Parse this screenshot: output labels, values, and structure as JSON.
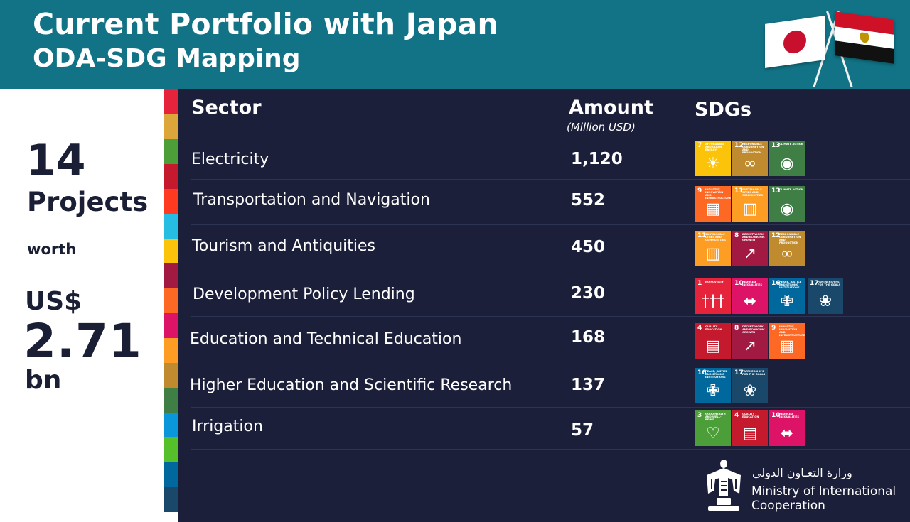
{
  "header": {
    "title": "Current Portfolio with Japan",
    "subtitle": "ODA-SDG Mapping"
  },
  "summary": {
    "projects_count": "14",
    "projects_label": "Projects",
    "worth_label": "worth",
    "currency": "US$",
    "total": "2.71",
    "unit": "bn"
  },
  "table": {
    "headers": {
      "sector": "Sector",
      "amount": "Amount",
      "amount_unit": "(Million USD)",
      "sdgs": "SDGs"
    },
    "rows": [
      {
        "sector": "Electricity",
        "amount": "1,120",
        "sdgs": [
          7,
          12,
          13
        ]
      },
      {
        "sector": "Transportation and Navigation",
        "amount": "552",
        "sdgs": [
          9,
          11,
          13
        ]
      },
      {
        "sector": "Tourism and Antiquities",
        "amount": "450",
        "sdgs": [
          11,
          8,
          12
        ]
      },
      {
        "sector": "Development Policy Lending",
        "amount": "230",
        "sdgs": [
          1,
          10,
          16,
          17
        ]
      },
      {
        "sector": "Education and Technical Education",
        "amount": "168",
        "sdgs": [
          4,
          8,
          9
        ]
      },
      {
        "sector": "Higher Education and Scientific Research",
        "amount": "137",
        "sdgs": [
          16,
          17
        ]
      },
      {
        "sector": "Irrigation",
        "amount": "57",
        "sdgs": [
          3,
          4,
          10
        ]
      }
    ]
  },
  "sdg_goals": {
    "1": {
      "title": "No Poverty",
      "color": "#e5243b",
      "icon": "family-icon"
    },
    "3": {
      "title": "Good Health and Well-Being",
      "color": "#4c9f38",
      "icon": "heartbeat-icon"
    },
    "4": {
      "title": "Quality Education",
      "color": "#c5192d",
      "icon": "book-icon"
    },
    "7": {
      "title": "Affordable and Clean Energy",
      "color": "#fcc30b",
      "icon": "sun-icon"
    },
    "8": {
      "title": "Decent Work and Economic Growth",
      "color": "#a21942",
      "icon": "growth-chart-icon"
    },
    "9": {
      "title": "Industry, Innovation and Infrastructure",
      "color": "#fd6925",
      "icon": "cubes-icon"
    },
    "10": {
      "title": "Reduced Inequalities",
      "color": "#dd1367",
      "icon": "equality-icon"
    },
    "11": {
      "title": "Sustainable Cities and Communities",
      "color": "#fd9d24",
      "icon": "city-icon"
    },
    "12": {
      "title": "Responsible Consumption and Production",
      "color": "#bf8b2e",
      "icon": "infinity-icon"
    },
    "13": {
      "title": "Climate Action",
      "color": "#3f7e44",
      "icon": "eye-globe-icon"
    },
    "16": {
      "title": "Peace, Justice and Strong Institutions",
      "color": "#00689d",
      "icon": "dove-icon"
    },
    "17": {
      "title": "Partnerships for the Goals",
      "color": "#19486a",
      "icon": "flower-icon"
    }
  },
  "stripe_colors": [
    "#e5243b",
    "#dda63a",
    "#4c9f38",
    "#c5192d",
    "#ff3a21",
    "#26bde2",
    "#fcc30b",
    "#a21942",
    "#fd6925",
    "#dd1367",
    "#fd9d24",
    "#bf8b2e",
    "#3f7e44",
    "#0a97d9",
    "#56c02b",
    "#00689d",
    "#19486a"
  ],
  "footer": {
    "arabic_name": "وزارة التعـاون الدولي",
    "english_name": "Ministry of International Cooperation"
  }
}
